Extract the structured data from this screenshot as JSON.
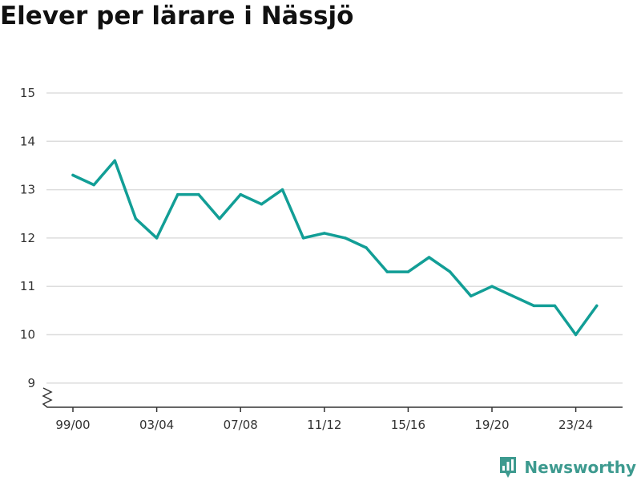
{
  "title": "Elever per lärare i Nässjö",
  "brand": {
    "name": "Newsworthy",
    "icon": "newsworthy-logo-icon",
    "color": "#3d9a8f"
  },
  "chart_data": {
    "type": "line",
    "title": "Elever per lärare i Nässjö",
    "xlabel": "",
    "ylabel": "",
    "x": [
      "99/00",
      "00/01",
      "01/02",
      "02/03",
      "03/04",
      "04/05",
      "05/06",
      "06/07",
      "07/08",
      "08/09",
      "09/10",
      "10/11",
      "11/12",
      "12/13",
      "13/14",
      "14/15",
      "15/16",
      "16/17",
      "17/18",
      "18/19",
      "19/20",
      "20/21",
      "21/22",
      "22/23",
      "23/24",
      "24/25"
    ],
    "x_tick_labels": [
      "99/00",
      "03/04",
      "07/08",
      "11/12",
      "15/16",
      "19/20",
      "23/24"
    ],
    "series": [
      {
        "color": "#129e96",
        "values": [
          13.3,
          13.1,
          13.6,
          12.4,
          12.0,
          12.9,
          12.9,
          12.4,
          12.9,
          12.7,
          13.0,
          12.0,
          12.1,
          12.0,
          11.8,
          11.3,
          11.3,
          11.6,
          11.3,
          10.8,
          11.0,
          10.8,
          10.6,
          10.6,
          10.0,
          10.6
        ]
      }
    ],
    "y_ticks": [
      9,
      10,
      11,
      12,
      13,
      14,
      15
    ],
    "ylim": [
      8.5,
      15
    ],
    "axis_break": true,
    "grid": true,
    "legend": "none",
    "colors": {
      "line": "#129e96",
      "grid": "#dddddd",
      "axis": "#333333"
    }
  }
}
